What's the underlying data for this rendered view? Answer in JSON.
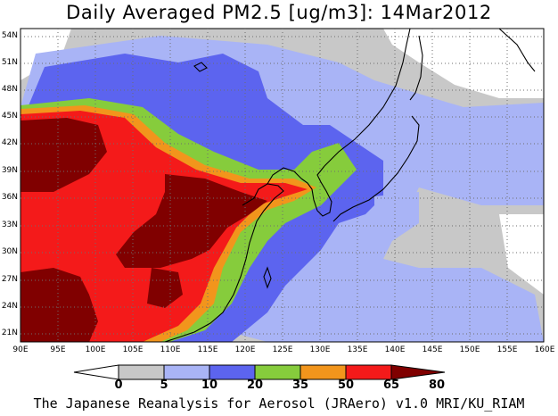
{
  "title": "Daily Averaged PM2.5 [ug/m3]: 14Mar2012",
  "footer": "The Japanese Reanalysis for Aerosol (JRAero) v1.0 MRI/KU_RIAM",
  "lat_ticks": [
    "54N",
    "51N",
    "48N",
    "45N",
    "42N",
    "39N",
    "36N",
    "33N",
    "30N",
    "27N",
    "24N",
    "21N"
  ],
  "lon_ticks": [
    "90E",
    "95E",
    "100E",
    "105E",
    "110E",
    "115E",
    "120E",
    "125E",
    "130E",
    "135E",
    "140E",
    "145E",
    "150E",
    "155E",
    "160E"
  ],
  "colorbar": {
    "labels": [
      "0",
      "5",
      "10",
      "20",
      "35",
      "50",
      "65",
      "80"
    ],
    "colors": [
      "#ffffff",
      "#c8c8c8",
      "#a9b4f6",
      "#5c64ef",
      "#86cc3c",
      "#f2951c",
      "#f41a1a",
      "#800000"
    ]
  },
  "legend_colors": {
    "background": "#ffffff",
    "grid": "#6e6e6e",
    "coast": "#000000"
  }
}
